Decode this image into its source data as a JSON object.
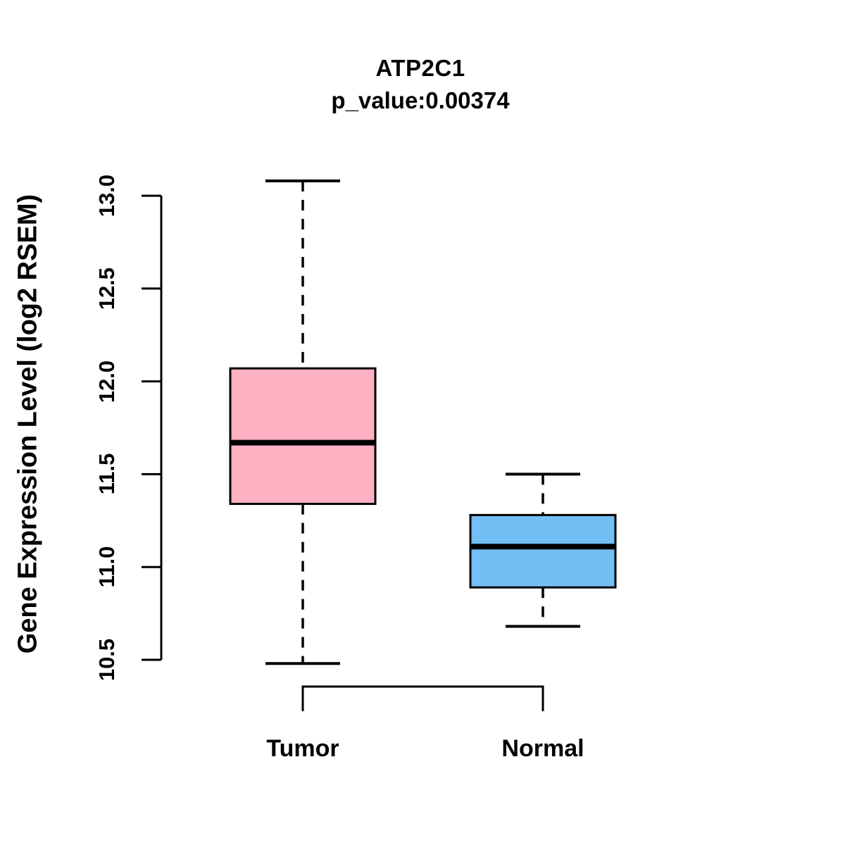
{
  "chart_data": {
    "type": "boxplot",
    "title": "ATP2C1",
    "subtitle": "p_value:0.00374",
    "xlabel": "",
    "ylabel": "Gene Expression Level (log2 RSEM)",
    "ylim": [
      10.5,
      13.0
    ],
    "yticks": [
      10.5,
      11.0,
      11.5,
      12.0,
      12.5,
      13.0
    ],
    "grid": false,
    "legend": "none",
    "categories": [
      "Tumor",
      "Normal"
    ],
    "groups": [
      {
        "label": "Tumor",
        "color": "#FFB1C4",
        "whisker_low": 10.48,
        "q1": 11.34,
        "median": 11.67,
        "q3": 12.07,
        "whisker_high": 13.08
      },
      {
        "label": "Normal",
        "color": "#73BEF5",
        "whisker_low": 10.68,
        "q1": 10.89,
        "median": 11.11,
        "q3": 11.28,
        "whisker_high": 11.5
      }
    ],
    "colors": {
      "box_border": "#000000",
      "median_line": "#000000",
      "whisker": "#000000",
      "axis": "#000000",
      "text": "#000000",
      "background": "#FFFFFF"
    }
  }
}
